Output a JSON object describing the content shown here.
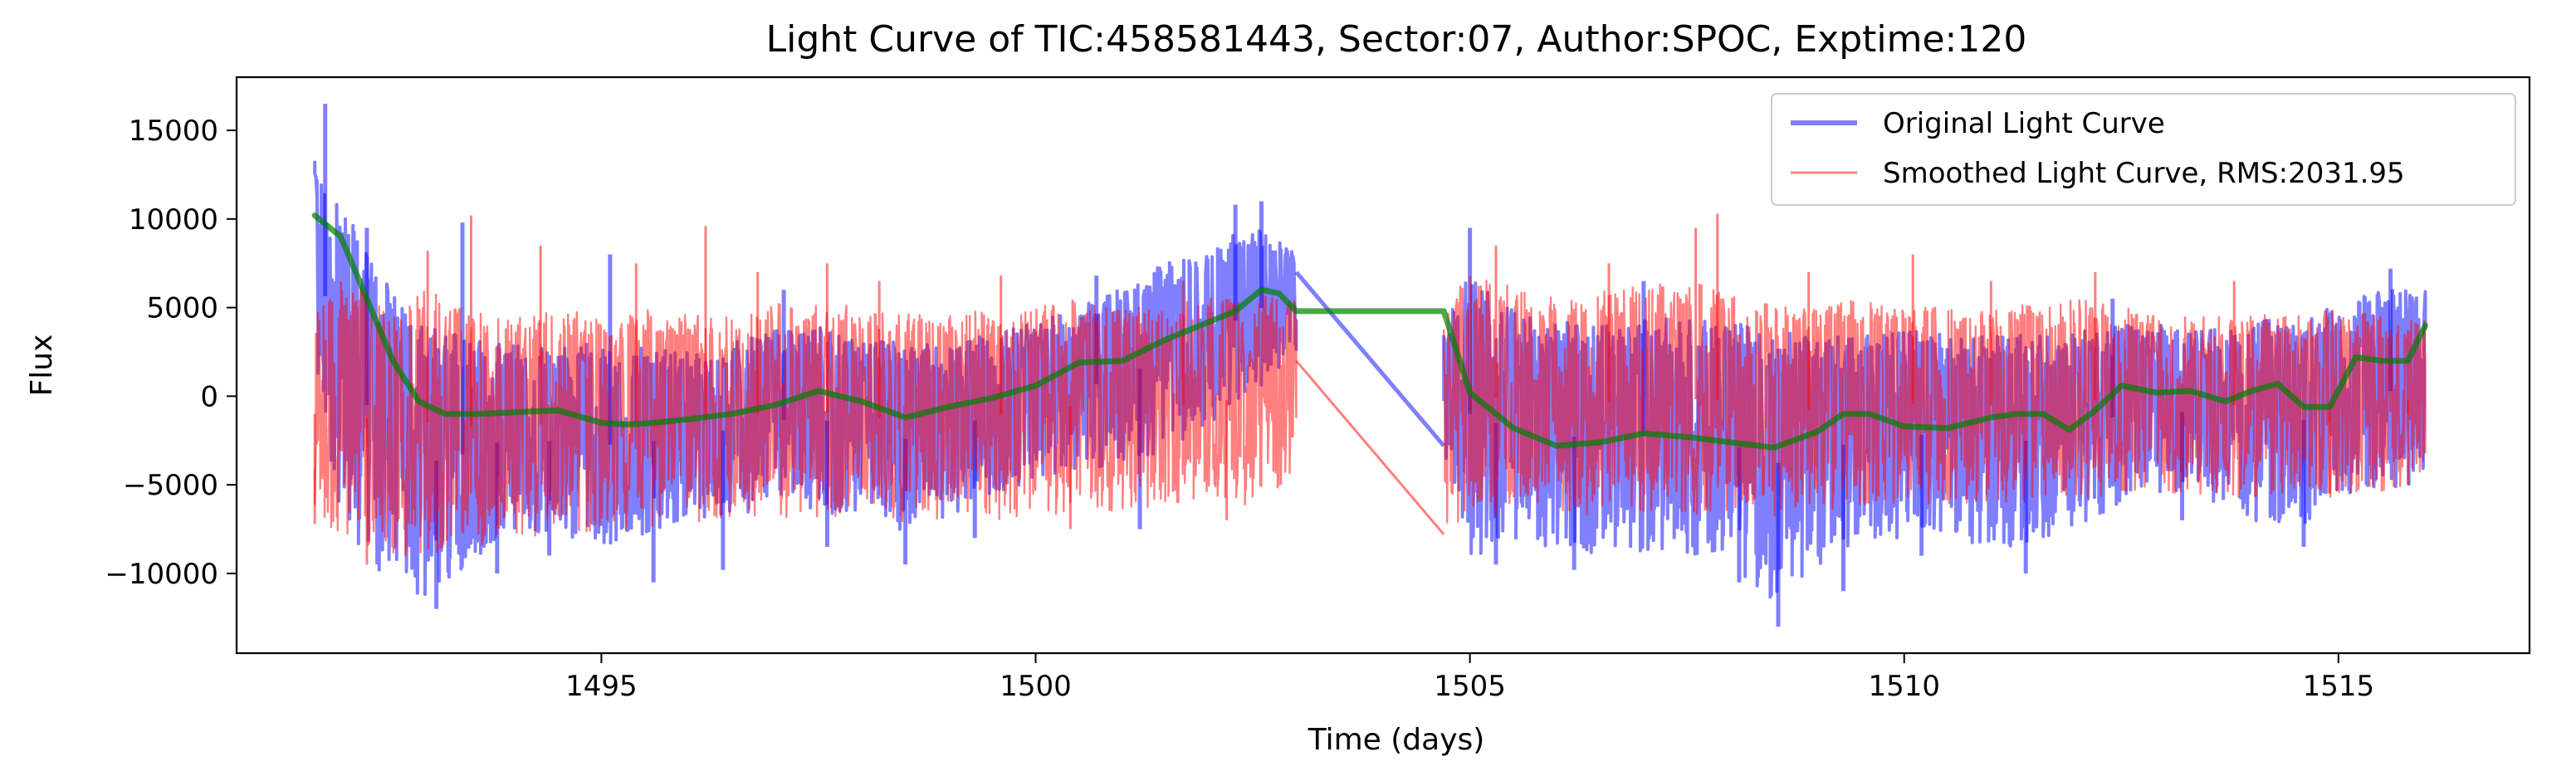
{
  "chart_data": {
    "type": "line",
    "title": "Light Curve of TIC:458581443, Sector:07, Author:SPOC, Exptime:120",
    "xlabel": "Time (days)",
    "ylabel": "Flux",
    "xlim": [
      1490.8,
      1517.2
    ],
    "ylim": [
      -14500,
      18000
    ],
    "xticks": [
      1495,
      1500,
      1505,
      1510,
      1515
    ],
    "xtick_labels": [
      "1495",
      "1500",
      "1505",
      "1510",
      "1515"
    ],
    "yticks": [
      -10000,
      -5000,
      0,
      5000,
      10000,
      15000
    ],
    "ytick_labels": [
      "−10000",
      "−5000",
      "0",
      "5000",
      "10000",
      "15000"
    ],
    "grid": false,
    "legend_position": "upper right",
    "gap": [
      1503.0,
      1504.7
    ],
    "series": [
      {
        "name": "Original Light Curve",
        "color": "#0000ff",
        "opacity": 0.5,
        "band": {
          "x": [
            1491.7,
            1492.0,
            1492.5,
            1493.0,
            1493.5,
            1494.0,
            1494.5,
            1495.0,
            1495.5,
            1496.0,
            1496.5,
            1497.0,
            1497.5,
            1498.0,
            1498.5,
            1499.0,
            1499.5,
            1500.0,
            1500.5,
            1501.0,
            1501.5,
            1502.0,
            1502.5,
            1503.0
          ],
          "upper": [
            14000,
            11000,
            6500,
            4000,
            3200,
            3000,
            2800,
            3000,
            2700,
            2800,
            3000,
            3800,
            4000,
            3200,
            3000,
            3000,
            3500,
            4200,
            5000,
            6200,
            7500,
            8200,
            9800,
            8000
          ],
          "lower": [
            2500,
            -7500,
            -10500,
            -11500,
            -9500,
            -7500,
            -8000,
            -8500,
            -8000,
            -7000,
            -6800,
            -6500,
            -6500,
            -7000,
            -7800,
            -6800,
            -5500,
            -4800,
            -4200,
            -4000,
            -3000,
            -1500,
            0,
            2500
          ]
        },
        "band2": {
          "x": [
            1504.7,
            1505.0,
            1505.5,
            1506.0,
            1506.5,
            1507.0,
            1507.5,
            1508.0,
            1508.5,
            1509.0,
            1509.5,
            1510.0,
            1510.5,
            1511.0,
            1511.5,
            1512.0,
            1512.5,
            1513.0,
            1513.5,
            1514.0,
            1514.5,
            1515.0,
            1515.5,
            1516.0
          ],
          "upper": [
            4000,
            7000,
            4800,
            4200,
            4000,
            4300,
            4500,
            4200,
            3800,
            3500,
            3400,
            3700,
            3600,
            3400,
            3500,
            3600,
            4000,
            4000,
            3800,
            4200,
            4500,
            5200,
            6000,
            6000
          ],
          "lower": [
            -3500,
            -9000,
            -8500,
            -8500,
            -9000,
            -8800,
            -9000,
            -9500,
            -11500,
            -9500,
            -8500,
            -8000,
            -8000,
            -8500,
            -8500,
            -7500,
            -6000,
            -5500,
            -6000,
            -7000,
            -7500,
            -6500,
            -5500,
            -5000
          ]
        },
        "connector": [
          [
            1503.0,
            7000
          ],
          [
            1504.7,
            -2800
          ]
        ],
        "spikes": [
          [
            1491.82,
            16500
          ],
          [
            1492.3,
            9500
          ],
          [
            1493.1,
            -12000
          ],
          [
            1493.4,
            9800
          ],
          [
            1493.8,
            -10000
          ],
          [
            1494.4,
            -9000
          ],
          [
            1495.1,
            8000
          ],
          [
            1495.6,
            -10500
          ],
          [
            1496.4,
            -9800
          ],
          [
            1497.1,
            6000
          ],
          [
            1497.6,
            -8500
          ],
          [
            1498.5,
            -9500
          ],
          [
            1499.3,
            -8000
          ],
          [
            1500.7,
            6800
          ],
          [
            1501.2,
            -7500
          ],
          [
            1502.3,
            10800
          ],
          [
            1502.6,
            11000
          ],
          [
            1505.0,
            9500
          ],
          [
            1505.3,
            -9500
          ],
          [
            1506.2,
            -9800
          ],
          [
            1507.0,
            6500
          ],
          [
            1508.1,
            -10500
          ],
          [
            1508.55,
            -13000
          ],
          [
            1509.3,
            -11000
          ],
          [
            1510.2,
            -9000
          ],
          [
            1511.4,
            -10000
          ],
          [
            1512.4,
            5500
          ],
          [
            1513.2,
            -7000
          ],
          [
            1514.6,
            -8500
          ],
          [
            1515.6,
            7200
          ]
        ]
      },
      {
        "name": "Smoothed Light Curve, RMS:2031.95",
        "color": "#ff0000",
        "opacity": 0.5,
        "band": {
          "x": [
            1491.7,
            1492.0,
            1492.5,
            1493.0,
            1493.5,
            1494.0,
            1494.5,
            1495.0,
            1495.5,
            1496.0,
            1496.5,
            1497.0,
            1497.5,
            1498.0,
            1498.5,
            1499.0,
            1499.5,
            1500.0,
            1500.5,
            1501.0,
            1501.5,
            1502.0,
            1502.5,
            1503.0
          ],
          "upper": [
            4500,
            6500,
            6000,
            6000,
            5000,
            4500,
            5000,
            4500,
            5000,
            4600,
            4500,
            5200,
            5300,
            5000,
            4800,
            5000,
            4800,
            5000,
            5500,
            5000,
            5200,
            5500,
            5800,
            5500
          ],
          "lower": [
            -6500,
            -8000,
            -9000,
            -9000,
            -8500,
            -8000,
            -8000,
            -7500,
            -7800,
            -7200,
            -7000,
            -6800,
            -7000,
            -7200,
            -7500,
            -7200,
            -7000,
            -6800,
            -6500,
            -6500,
            -6500,
            -6000,
            -6200,
            -4500
          ]
        },
        "band2": {
          "x": [
            1504.7,
            1505.0,
            1505.5,
            1506.0,
            1506.5,
            1507.0,
            1507.5,
            1508.0,
            1508.5,
            1509.0,
            1509.5,
            1510.0,
            1510.5,
            1511.0,
            1511.5,
            1512.0,
            1512.5,
            1513.0,
            1513.5,
            1514.0,
            1514.5,
            1515.0,
            1515.5,
            1516.0
          ],
          "upper": [
            5000,
            7000,
            6500,
            5500,
            6000,
            6200,
            6500,
            6000,
            5500,
            5000,
            5500,
            5200,
            5000,
            5000,
            5200,
            5500,
            5000,
            4800,
            4500,
            4800,
            4500,
            5000,
            4600,
            4500
          ],
          "lower": [
            -7800,
            -7500,
            -6500,
            -6500,
            -6800,
            -6500,
            -6800,
            -6500,
            -6800,
            -6500,
            -6200,
            -6000,
            -6200,
            -6000,
            -6000,
            -5800,
            -5500,
            -5500,
            -5500,
            -5800,
            -5500,
            -5800,
            -5500,
            -4500
          ]
        },
        "connector": [
          [
            1503.0,
            2000
          ],
          [
            1504.7,
            -7800
          ]
        ],
        "spikes": [
          [
            1491.7,
            -7200
          ],
          [
            1492.3,
            -9500
          ],
          [
            1493.0,
            8200
          ],
          [
            1493.5,
            10200
          ],
          [
            1494.3,
            8500
          ],
          [
            1495.4,
            7500
          ],
          [
            1496.2,
            9600
          ],
          [
            1496.8,
            7000
          ],
          [
            1497.6,
            7500
          ],
          [
            1498.2,
            6500
          ],
          [
            1499.6,
            6800
          ],
          [
            1500.4,
            -7500
          ],
          [
            1501.7,
            6500
          ],
          [
            1502.2,
            -7000
          ],
          [
            1505.3,
            8500
          ],
          [
            1506.6,
            7500
          ],
          [
            1507.6,
            9500
          ],
          [
            1507.85,
            10300
          ],
          [
            1508.9,
            7000
          ],
          [
            1510.1,
            8000
          ],
          [
            1511.0,
            6500
          ],
          [
            1512.2,
            7000
          ],
          [
            1513.8,
            6500
          ],
          [
            1514.9,
            -5500
          ],
          [
            1515.8,
            -5000
          ]
        ]
      },
      {
        "name": "",
        "color": "#008000",
        "opacity": 0.7,
        "x": [
          1491.7,
          1492.0,
          1492.3,
          1492.6,
          1492.9,
          1493.2,
          1493.6,
          1494.0,
          1494.5,
          1495.0,
          1495.3,
          1495.6,
          1496.0,
          1496.5,
          1497.0,
          1497.5,
          1498.0,
          1498.5,
          1499.0,
          1499.5,
          1500.0,
          1500.5,
          1501.0,
          1501.5,
          1502.0,
          1502.3,
          1502.6,
          1502.8,
          1503.0,
          1504.7,
          1505.0,
          1505.5,
          1506.0,
          1506.5,
          1507.0,
          1507.5,
          1508.0,
          1508.5,
          1509.0,
          1509.3,
          1509.6,
          1510.0,
          1510.5,
          1511.0,
          1511.3,
          1511.6,
          1511.9,
          1512.2,
          1512.5,
          1512.9,
          1513.3,
          1513.7,
          1514.0,
          1514.3,
          1514.6,
          1514.9,
          1515.2,
          1515.5,
          1515.8,
          1516.0
        ],
        "y": [
          10200,
          9000,
          5500,
          2000,
          -300,
          -1000,
          -1000,
          -900,
          -800,
          -1500,
          -1600,
          -1500,
          -1300,
          -1000,
          -500,
          300,
          -300,
          -1200,
          -600,
          -100,
          600,
          1900,
          2000,
          3200,
          4200,
          4800,
          6000,
          5800,
          4800,
          4800,
          200,
          -1800,
          -2800,
          -2600,
          -2100,
          -2300,
          -2600,
          -2900,
          -2000,
          -1000,
          -1000,
          -1700,
          -1800,
          -1200,
          -1000,
          -1000,
          -1900,
          -800,
          600,
          200,
          300,
          -300,
          300,
          700,
          -600,
          -600,
          2200,
          2000,
          2000,
          4000
        ]
      }
    ]
  }
}
